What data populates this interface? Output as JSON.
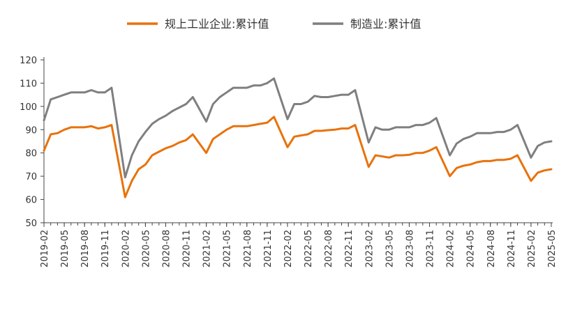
{
  "chart_data": {
    "type": "line",
    "title": "",
    "xlabel": "",
    "ylabel": "",
    "ylim": [
      50,
      120
    ],
    "yticks": [
      50,
      60,
      70,
      80,
      90,
      100,
      110,
      120
    ],
    "grid": false,
    "legend_position": "top-center",
    "x_tick_labels": [
      "2019-02",
      "2019-05",
      "2019-08",
      "2019-11",
      "2020-02",
      "2020-05",
      "2020-08",
      "2020-11",
      "2021-02",
      "2021-05",
      "2021-08",
      "2021-11",
      "2022-02",
      "2022-05",
      "2022-08",
      "2022-11",
      "2023-02",
      "2023-05",
      "2023-08",
      "2023-11",
      "2024-02",
      "2024-05",
      "2024-08",
      "2024-11",
      "2025-02",
      "2025-05"
    ],
    "x": [
      "2019-02",
      "2019-03",
      "2019-04",
      "2019-05",
      "2019-06",
      "2019-07",
      "2019-08",
      "2019-09",
      "2019-10",
      "2019-11",
      "2019-12",
      "2020-02",
      "2020-03",
      "2020-04",
      "2020-05",
      "2020-06",
      "2020-07",
      "2020-08",
      "2020-09",
      "2020-10",
      "2020-11",
      "2020-12",
      "2021-02",
      "2021-03",
      "2021-04",
      "2021-05",
      "2021-06",
      "2021-07",
      "2021-08",
      "2021-09",
      "2021-10",
      "2021-11",
      "2021-12",
      "2022-02",
      "2022-03",
      "2022-04",
      "2022-05",
      "2022-06",
      "2022-07",
      "2022-08",
      "2022-09",
      "2022-10",
      "2022-11",
      "2022-12",
      "2023-02",
      "2023-03",
      "2023-04",
      "2023-05",
      "2023-06",
      "2023-07",
      "2023-08",
      "2023-09",
      "2023-10",
      "2023-11",
      "2023-12",
      "2024-02",
      "2024-03",
      "2024-04",
      "2024-05",
      "2024-06",
      "2024-07",
      "2024-08",
      "2024-09",
      "2024-10",
      "2024-11",
      "2024-12",
      "2025-02",
      "2025-03",
      "2025-04",
      "2025-05"
    ],
    "series": [
      {
        "name": "规上工业企业:累计值",
        "color": "#E8720C",
        "values": [
          81,
          88,
          88.5,
          90,
          91,
          91,
          91,
          91.5,
          90.5,
          91,
          92,
          61,
          68,
          73,
          75,
          79,
          80.5,
          82,
          83,
          84.5,
          85.5,
          88,
          80,
          86,
          88,
          90,
          91.5,
          91.5,
          91.5,
          92,
          92.5,
          93,
          95.5,
          82.5,
          87,
          87.5,
          88,
          89.5,
          89.5,
          89.8,
          90,
          90.5,
          90.5,
          92,
          74,
          79,
          78.5,
          78,
          79,
          79,
          79.2,
          80,
          80,
          81,
          82.5,
          70,
          73.5,
          74.5,
          75,
          76,
          76.5,
          76.5,
          77,
          77,
          77.5,
          79,
          68,
          71.5,
          72.5,
          73
        ]
      },
      {
        "name": "制造业:累计值",
        "color": "#7F7F7F",
        "values": [
          94,
          103,
          104,
          105,
          106,
          106,
          106,
          107,
          106,
          106,
          108,
          69.5,
          79,
          85,
          89,
          92.5,
          94.5,
          96,
          98,
          99.5,
          101,
          104,
          93.5,
          101,
          104,
          106,
          108,
          108,
          108,
          109,
          109,
          110,
          112,
          94.5,
          101,
          101,
          102,
          104.5,
          104,
          104,
          104.5,
          105,
          105,
          107,
          84.5,
          91,
          90,
          90,
          91,
          91,
          91,
          92,
          92,
          93,
          95,
          79,
          84,
          86,
          87,
          88.5,
          88.5,
          88.5,
          89,
          89,
          90,
          92,
          78,
          83,
          84.5,
          85
        ]
      }
    ]
  }
}
